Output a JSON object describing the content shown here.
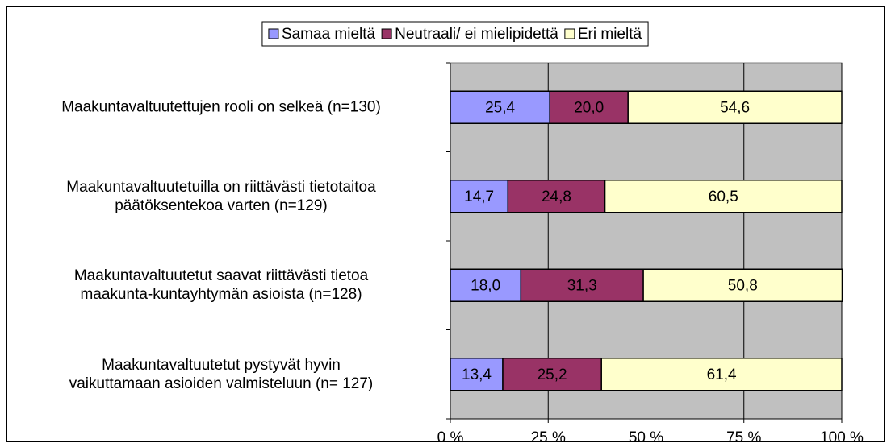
{
  "chart_data": {
    "type": "stacked-bar-horizontal",
    "categories": [
      "Maakuntavaltuutettujen rooli on selkeä (n=130)",
      "Maakuntavaltuutetuilla on riittävästi tietotaitoa\npäätöksentekoa varten (n=129)",
      "Maakuntavaltuutetut saavat riittävästi tietoa\nmaakunta-kuntayhtymän asioista (n=128)",
      "Maakuntavaltuutetut pystyvät hyvin\nvaikuttamaan asioiden valmisteluun (n= 127)"
    ],
    "series": [
      {
        "name": "Samaa mieltä",
        "color": "#9999ff",
        "values": [
          25.4,
          14.7,
          18.0,
          13.4
        ],
        "value_labels": [
          "25,4",
          "14,7",
          "18,0",
          "13,4"
        ]
      },
      {
        "name": "Neutraali/ ei mielipidettä",
        "color": "#993366",
        "values": [
          20.0,
          24.8,
          31.3,
          25.2
        ],
        "value_labels": [
          "20,0",
          "24,8",
          "31,3",
          "25,2"
        ]
      },
      {
        "name": "Eri mieltä",
        "color": "#ffffcc",
        "values": [
          54.6,
          60.5,
          50.8,
          61.4
        ],
        "value_labels": [
          "54,6",
          "60,5",
          "50,8",
          "61,4"
        ]
      }
    ],
    "xlim": [
      0,
      100
    ],
    "xticks": [
      {
        "value": 0,
        "label": "0 %"
      },
      {
        "value": 25,
        "label": "25 %"
      },
      {
        "value": 50,
        "label": "50 %"
      },
      {
        "value": 75,
        "label": "75 %"
      },
      {
        "value": 100,
        "label": "100 %"
      }
    ],
    "grid": true,
    "legend": "top"
  }
}
